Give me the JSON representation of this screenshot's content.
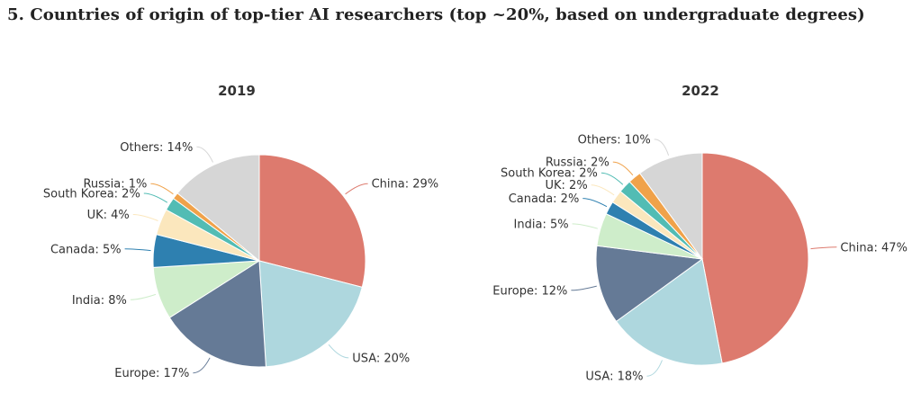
{
  "page": {
    "title": "5. Countries of origin of top-tier AI researchers (top ~20%, based on undergraduate degrees)"
  },
  "chart_data": [
    {
      "type": "pie",
      "title": "2019",
      "start_angle_deg": 0,
      "direction": "clockwise",
      "slices": [
        {
          "name": "China",
          "value": 29,
          "label": "China: 29%",
          "color": "#dd7a6e"
        },
        {
          "name": "USA",
          "value": 20,
          "label": "USA: 20%",
          "color": "#aed7de"
        },
        {
          "name": "Europe",
          "value": 17,
          "label": "Europe: 17%",
          "color": "#657a96"
        },
        {
          "name": "India",
          "value": 8,
          "label": "India: 8%",
          "color": "#ceedca"
        },
        {
          "name": "Canada",
          "value": 5,
          "label": "Canada: 5%",
          "color": "#2e80b0"
        },
        {
          "name": "UK",
          "value": 4,
          "label": "UK: 4%",
          "color": "#fbe7bd"
        },
        {
          "name": "South Korea",
          "value": 2,
          "label": "South Korea: 2%",
          "color": "#52bcb4"
        },
        {
          "name": "Russia",
          "value": 1,
          "label": "Russia: 1%",
          "color": "#f0a24a"
        },
        {
          "name": "Others",
          "value": 14,
          "label": "Others: 14%",
          "color": "#d6d6d6"
        }
      ]
    },
    {
      "type": "pie",
      "title": "2022",
      "start_angle_deg": 0,
      "direction": "clockwise",
      "slices": [
        {
          "name": "China",
          "value": 47,
          "label": "China: 47%",
          "color": "#dd7a6e"
        },
        {
          "name": "USA",
          "value": 18,
          "label": "USA: 18%",
          "color": "#aed7de"
        },
        {
          "name": "Europe",
          "value": 12,
          "label": "Europe: 12%",
          "color": "#657a96"
        },
        {
          "name": "India",
          "value": 5,
          "label": "India: 5%",
          "color": "#ceedca"
        },
        {
          "name": "Canada",
          "value": 2,
          "label": "Canada: 2%",
          "color": "#2e80b0"
        },
        {
          "name": "UK",
          "value": 2,
          "label": "UK: 2%",
          "color": "#fbe7bd"
        },
        {
          "name": "South Korea",
          "value": 2,
          "label": "South Korea: 2%",
          "color": "#52bcb4"
        },
        {
          "name": "Russia",
          "value": 2,
          "label": "Russia: 2%",
          "color": "#f0a24a"
        },
        {
          "name": "Others",
          "value": 10,
          "label": "Others: 10%",
          "color": "#d6d6d6"
        }
      ]
    }
  ]
}
